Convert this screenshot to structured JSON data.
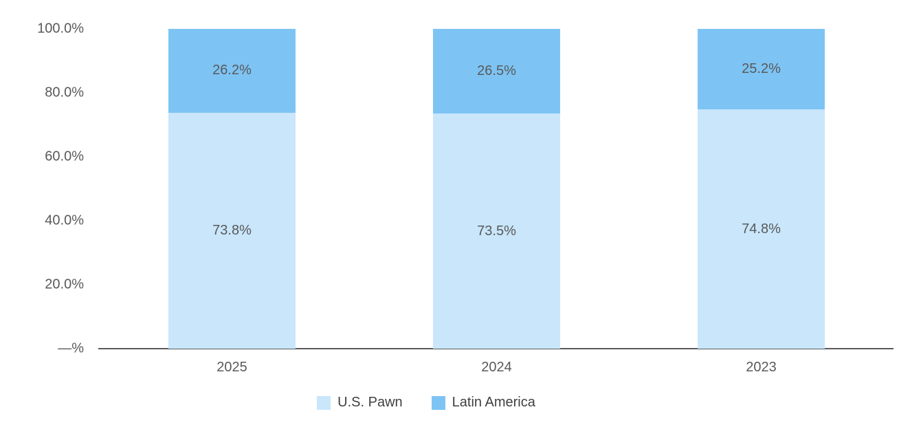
{
  "chart_data": {
    "type": "bar",
    "stacked": true,
    "title": "",
    "xlabel": "",
    "ylabel": "",
    "categories": [
      "2025",
      "2024",
      "2023"
    ],
    "series": [
      {
        "name": "U.S. Pawn",
        "color": "#c9e6fb",
        "values": [
          73.8,
          73.5,
          74.8
        ],
        "labels": [
          "73.8%",
          "73.5%",
          "74.8%"
        ]
      },
      {
        "name": "Latin America",
        "color": "#7dc4f4",
        "values": [
          26.2,
          26.5,
          25.2
        ],
        "labels": [
          "26.2%",
          "26.5%",
          "25.2%"
        ]
      }
    ],
    "ylim": [
      0,
      100
    ],
    "y_ticks": [
      "—%",
      "20.0%",
      "40.0%",
      "60.0%",
      "80.0%",
      "100.0%"
    ],
    "grid": false,
    "legend_position": "bottom",
    "text_color": "#595959",
    "axis_line_color": "#58595b"
  }
}
